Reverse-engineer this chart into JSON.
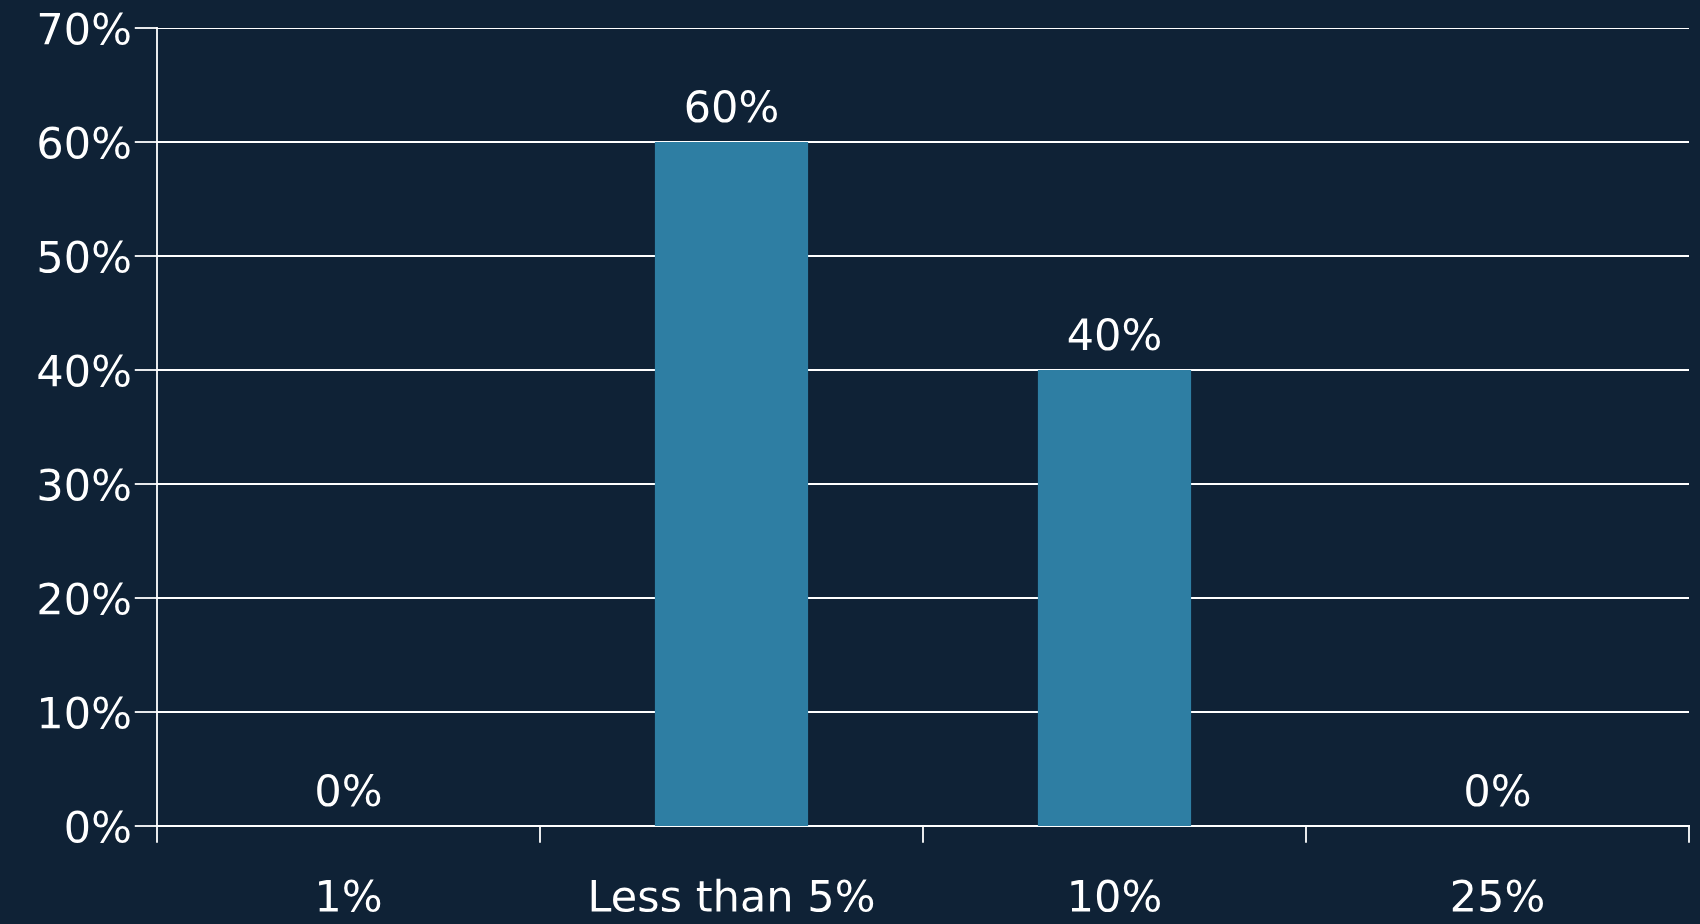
{
  "chart_data": {
    "type": "bar",
    "categories": [
      "1%",
      "Less than 5%",
      "10%",
      "25%"
    ],
    "values": [
      0,
      60,
      40,
      0
    ],
    "color": "#2e7ea3",
    "data_labels": true,
    "value_labels": [
      "0%",
      "60%",
      "40%",
      "0%"
    ],
    "ylim": [
      0,
      70
    ],
    "yticks": [
      {
        "value": 0,
        "label": "0%"
      },
      {
        "value": 10,
        "label": "10%"
      },
      {
        "value": 20,
        "label": "20%"
      },
      {
        "value": 30,
        "label": "30%"
      },
      {
        "value": 40,
        "label": "40%"
      },
      {
        "value": 50,
        "label": "50%"
      },
      {
        "value": 60,
        "label": "60%"
      },
      {
        "value": 70,
        "label": "70%"
      }
    ],
    "grid": "y",
    "legend": false
  }
}
